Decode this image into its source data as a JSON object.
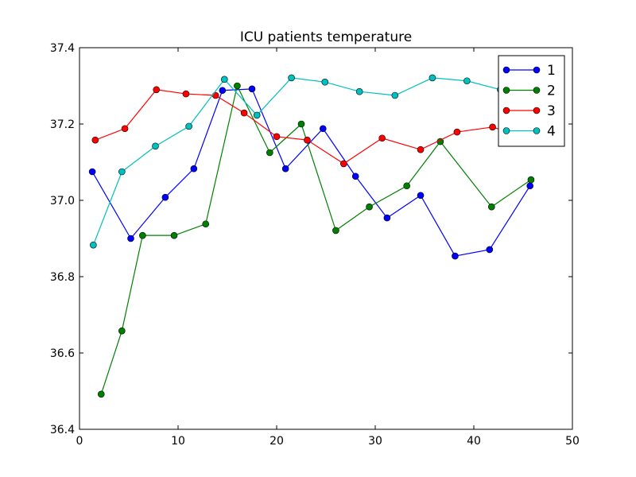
{
  "chart_data": {
    "type": "line",
    "title": "ICU patients temperature",
    "xlabel": "",
    "ylabel": "",
    "xlim": [
      0,
      50
    ],
    "ylim": [
      36.4,
      37.4
    ],
    "x_ticks": [
      0,
      10,
      20,
      30,
      40,
      50
    ],
    "y_ticks": [
      36.4,
      36.6,
      36.8,
      37.0,
      37.2,
      37.4
    ],
    "x_tick_labels": [
      "0",
      "10",
      "20",
      "30",
      "40",
      "50"
    ],
    "y_tick_labels": [
      "36.4",
      "36.6",
      "36.8",
      "37.0",
      "37.2",
      "37.4"
    ],
    "grid": false,
    "legend_position": "top-right",
    "series": [
      {
        "name": "1",
        "color": "#0000ff",
        "points": [
          [
            1.3,
            37.075
          ],
          [
            5.2,
            36.9
          ],
          [
            8.7,
            37.008
          ],
          [
            11.6,
            37.083
          ],
          [
            14.5,
            37.288
          ],
          [
            17.5,
            37.292
          ],
          [
            20.9,
            37.083
          ],
          [
            24.7,
            37.188
          ],
          [
            28.0,
            37.063
          ],
          [
            31.2,
            36.954
          ],
          [
            34.6,
            37.013
          ],
          [
            38.1,
            36.854
          ],
          [
            41.6,
            36.871
          ],
          [
            45.7,
            37.038
          ]
        ]
      },
      {
        "name": "2",
        "color": "#008000",
        "points": [
          [
            2.2,
            36.492
          ],
          [
            4.3,
            36.658
          ],
          [
            6.4,
            36.908
          ],
          [
            9.6,
            36.908
          ],
          [
            12.8,
            36.938
          ],
          [
            16.0,
            37.3
          ],
          [
            19.3,
            37.125
          ],
          [
            22.5,
            37.2
          ],
          [
            26.0,
            36.921
          ],
          [
            29.4,
            36.983
          ],
          [
            33.2,
            37.038
          ],
          [
            36.6,
            37.154
          ],
          [
            41.8,
            36.983
          ],
          [
            45.8,
            37.054
          ]
        ]
      },
      {
        "name": "3",
        "color": "#ff0000",
        "points": [
          [
            1.6,
            37.158
          ],
          [
            4.6,
            37.188
          ],
          [
            7.8,
            37.29
          ],
          [
            10.8,
            37.279
          ],
          [
            13.8,
            37.275
          ],
          [
            16.7,
            37.229
          ],
          [
            20.0,
            37.167
          ],
          [
            23.1,
            37.158
          ],
          [
            26.8,
            37.096
          ],
          [
            30.7,
            37.163
          ],
          [
            34.6,
            37.133
          ],
          [
            38.3,
            37.179
          ],
          [
            41.9,
            37.192
          ],
          [
            46.0,
            37.158
          ]
        ]
      },
      {
        "name": "4",
        "color": "#00bfbf",
        "points": [
          [
            1.4,
            36.883
          ],
          [
            4.3,
            37.075
          ],
          [
            7.7,
            37.142
          ],
          [
            11.1,
            37.194
          ],
          [
            14.7,
            37.317
          ],
          [
            18.0,
            37.223
          ],
          [
            21.5,
            37.321
          ],
          [
            24.9,
            37.31
          ],
          [
            28.4,
            37.285
          ],
          [
            32.0,
            37.275
          ],
          [
            35.8,
            37.321
          ],
          [
            39.3,
            37.313
          ],
          [
            42.7,
            37.29
          ],
          [
            45.9,
            37.285
          ]
        ]
      }
    ]
  }
}
